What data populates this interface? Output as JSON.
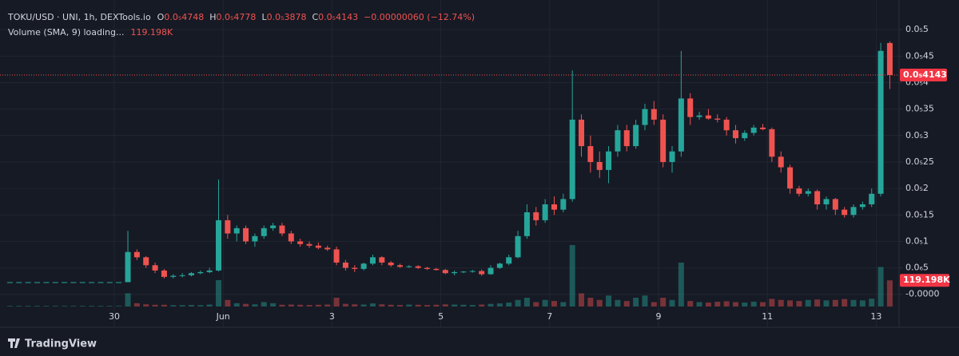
{
  "chart_data": {
    "type": "candlestick",
    "title": "TOKU/USD · UNI, 1h, DEXTools.io",
    "ohlc_labels": [
      "O",
      "H",
      "L",
      "C"
    ],
    "ohlc_values": [
      "0.0₅4748",
      "0.0₅4778",
      "0.0₅3878",
      "0.0₅4143"
    ],
    "change": "−0.00000060 (−12.74%)",
    "volume_title": "Volume (SMA, 9) loading...",
    "current_volume_label": "119.198K",
    "current_price_label": "0.0₅4143",
    "brand": "TradingView",
    "up_color": "#26a69a",
    "down_color": "#ef5350",
    "grid": true,
    "ylim": [
      -2.3e-07,
      5.44e-06
    ],
    "yticks": [
      {
        "value": 5e-06,
        "label": "0.0₅5"
      },
      {
        "value": 4.5e-06,
        "label": "0.0₅45"
      },
      {
        "value": 4e-06,
        "label": "0.0₅4"
      },
      {
        "value": 3.5e-06,
        "label": "0.0₅35"
      },
      {
        "value": 3e-06,
        "label": "0.0₅3"
      },
      {
        "value": 2.5e-06,
        "label": "0.0₅25"
      },
      {
        "value": 2e-06,
        "label": "0.0₅2"
      },
      {
        "value": 1.5e-06,
        "label": "0.0₅15"
      },
      {
        "value": 1e-06,
        "label": "0.0₅1"
      },
      {
        "value": 5e-07,
        "label": "0.0₆5"
      },
      {
        "value": 0,
        "label": "-0.0000"
      }
    ],
    "categories": [
      null,
      null,
      null,
      null,
      null,
      null,
      null,
      null,
      null,
      null,
      null,
      null,
      "30",
      null,
      null,
      null,
      null,
      null,
      null,
      null,
      null,
      null,
      null,
      null,
      "Jun",
      null,
      null,
      null,
      null,
      null,
      null,
      null,
      null,
      null,
      null,
      null,
      "3",
      null,
      null,
      null,
      null,
      null,
      null,
      null,
      null,
      null,
      null,
      null,
      "5",
      null,
      null,
      null,
      null,
      null,
      null,
      null,
      null,
      null,
      null,
      null,
      "7",
      null,
      null,
      null,
      null,
      null,
      null,
      null,
      null,
      null,
      null,
      null,
      "9",
      null,
      null,
      null,
      null,
      null,
      null,
      null,
      null,
      null,
      null,
      null,
      "11",
      null,
      null,
      null,
      null,
      null,
      null,
      null,
      null,
      null,
      null,
      null,
      "13",
      null
    ],
    "ohlc": [
      [
        2.3e-07,
        2.3e-07,
        2.3e-07,
        2.3e-07
      ],
      [
        2.3e-07,
        2.3e-07,
        2.3e-07,
        2.3e-07
      ],
      [
        2.3e-07,
        2.3e-07,
        2.3e-07,
        2.3e-07
      ],
      [
        2.3e-07,
        2.3e-07,
        2.3e-07,
        2.3e-07
      ],
      [
        2.3e-07,
        2.3e-07,
        2.3e-07,
        2.3e-07
      ],
      [
        2.3e-07,
        2.3e-07,
        2.3e-07,
        2.3e-07
      ],
      [
        2.3e-07,
        2.3e-07,
        2.3e-07,
        2.3e-07
      ],
      [
        2.3e-07,
        2.3e-07,
        2.3e-07,
        2.3e-07
      ],
      [
        2.3e-07,
        2.3e-07,
        2.3e-07,
        2.3e-07
      ],
      [
        2.3e-07,
        2.3e-07,
        2.3e-07,
        2.3e-07
      ],
      [
        2.3e-07,
        2.3e-07,
        2.3e-07,
        2.3e-07
      ],
      [
        2.3e-07,
        2.3e-07,
        2.3e-07,
        2.3e-07
      ],
      [
        2.3e-07,
        2.3e-07,
        2.3e-07,
        2.3e-07
      ],
      [
        2.3e-07,
        1.2e-06,
        2.3e-07,
        8e-07
      ],
      [
        8e-07,
        8.5e-07,
        6.5e-07,
        7e-07
      ],
      [
        7e-07,
        7.2e-07,
        5e-07,
        5.5e-07
      ],
      [
        5.5e-07,
        6e-07,
        4e-07,
        4.5e-07
      ],
      [
        4.5e-07,
        4.8e-07,
        3e-07,
        3.3e-07
      ],
      [
        3.3e-07,
        3.8e-07,
        3e-07,
        3.5e-07
      ],
      [
        3.5e-07,
        4e-07,
        3.2e-07,
        3.6e-07
      ],
      [
        3.6e-07,
        4.2e-07,
        3.4e-07,
        4e-07
      ],
      [
        4e-07,
        4.5e-07,
        3.8e-07,
        4.2e-07
      ],
      [
        4.2e-07,
        5e-07,
        4e-07,
        4.5e-07
      ],
      [
        4.5e-07,
        2.17e-06,
        4.3e-07,
        1.4e-06
      ],
      [
        1.4e-06,
        1.5e-06,
        1.05e-06,
        1.15e-06
      ],
      [
        1.15e-06,
        1.3e-06,
        1e-06,
        1.25e-06
      ],
      [
        1.25e-06,
        1.3e-06,
        9.5e-07,
        1e-06
      ],
      [
        1e-06,
        1.15e-06,
        9e-07,
        1.1e-06
      ],
      [
        1.1e-06,
        1.3e-06,
        1.05e-06,
        1.25e-06
      ],
      [
        1.25e-06,
        1.35e-06,
        1.2e-06,
        1.3e-06
      ],
      [
        1.3e-06,
        1.35e-06,
        1.1e-06,
        1.15e-06
      ],
      [
        1.15e-06,
        1.2e-06,
        9.5e-07,
        1e-06
      ],
      [
        1e-06,
        1.05e-06,
        9e-07,
        9.5e-07
      ],
      [
        9.5e-07,
        1e-06,
        8.8e-07,
        9.2e-07
      ],
      [
        9.2e-07,
        9.8e-07,
        8.5e-07,
        8.8e-07
      ],
      [
        8.8e-07,
        9.2e-07,
        8.2e-07,
        8.5e-07
      ],
      [
        8.5e-07,
        9e-07,
        5.5e-07,
        6e-07
      ],
      [
        6e-07,
        6.5e-07,
        4.5e-07,
        5e-07
      ],
      [
        5e-07,
        5.5e-07,
        4.2e-07,
        4.8e-07
      ],
      [
        4.8e-07,
        6e-07,
        4.5e-07,
        5.8e-07
      ],
      [
        5.8e-07,
        7.5e-07,
        5.5e-07,
        7e-07
      ],
      [
        7e-07,
        7.2e-07,
        5.5e-07,
        6e-07
      ],
      [
        6e-07,
        6.3e-07,
        5.2e-07,
        5.5e-07
      ],
      [
        5.5e-07,
        5.8e-07,
        5e-07,
        5.2e-07
      ],
      [
        5.2e-07,
        5.5e-07,
        5e-07,
        5.3e-07
      ],
      [
        5.3e-07,
        5.5e-07,
        4.8e-07,
        5e-07
      ],
      [
        5e-07,
        5.2e-07,
        4.6e-07,
        4.8e-07
      ],
      [
        4.8e-07,
        5e-07,
        4.5e-07,
        4.6e-07
      ],
      [
        4.6e-07,
        4.8e-07,
        3.8e-07,
        4e-07
      ],
      [
        4e-07,
        4.5e-07,
        3.6e-07,
        4.2e-07
      ],
      [
        4.2e-07,
        4.4e-07,
        4e-07,
        4.3e-07
      ],
      [
        4.3e-07,
        4.6e-07,
        4.1e-07,
        4.4e-07
      ],
      [
        4.4e-07,
        4.7e-07,
        3.5e-07,
        3.8e-07
      ],
      [
        3.8e-07,
        5.5e-07,
        3.7e-07,
        5e-07
      ],
      [
        5e-07,
        6e-07,
        4.8e-07,
        5.8e-07
      ],
      [
        5.8e-07,
        7.5e-07,
        5.5e-07,
        7e-07
      ],
      [
        7e-07,
        1.2e-06,
        6.8e-07,
        1.1e-06
      ],
      [
        1.1e-06,
        1.7e-06,
        1.05e-06,
        1.55e-06
      ],
      [
        1.55e-06,
        1.65e-06,
        1.3e-06,
        1.4e-06
      ],
      [
        1.4e-06,
        1.8e-06,
        1.35e-06,
        1.7e-06
      ],
      [
        1.7e-06,
        1.85e-06,
        1.5e-06,
        1.6e-06
      ],
      [
        1.6e-06,
        1.9e-06,
        1.55e-06,
        1.8e-06
      ],
      [
        1.8e-06,
        4.23e-06,
        1.75e-06,
        3.3e-06
      ],
      [
        3.3e-06,
        3.4e-06,
        2.6e-06,
        2.8e-06
      ],
      [
        2.8e-06,
        3e-06,
        2.3e-06,
        2.5e-06
      ],
      [
        2.5e-06,
        2.7e-06,
        2.2e-06,
        2.35e-06
      ],
      [
        2.35e-06,
        2.8e-06,
        2.1e-06,
        2.7e-06
      ],
      [
        2.7e-06,
        3.2e-06,
        2.6e-06,
        3.1e-06
      ],
      [
        3.1e-06,
        3.2e-06,
        2.7e-06,
        2.8e-06
      ],
      [
        2.8e-06,
        3.3e-06,
        2.75e-06,
        3.2e-06
      ],
      [
        3.2e-06,
        3.6e-06,
        3.1e-06,
        3.5e-06
      ],
      [
        3.5e-06,
        3.65e-06,
        3.2e-06,
        3.3e-06
      ],
      [
        3.3e-06,
        3.4e-06,
        2.4e-06,
        2.5e-06
      ],
      [
        2.5e-06,
        2.8e-06,
        2.3e-06,
        2.7e-06
      ],
      [
        2.7e-06,
        4.6e-06,
        2.6e-06,
        3.7e-06
      ],
      [
        3.7e-06,
        3.8e-06,
        3.2e-06,
        3.35e-06
      ],
      [
        3.35e-06,
        3.45e-06,
        3.3e-06,
        3.38e-06
      ],
      [
        3.38e-06,
        3.5e-06,
        3.3e-06,
        3.32e-06
      ],
      [
        3.32e-06,
        3.4e-06,
        3.25e-06,
        3.3e-06
      ],
      [
        3.3e-06,
        3.35e-06,
        3e-06,
        3.1e-06
      ],
      [
        3.1e-06,
        3.2e-06,
        2.85e-06,
        2.95e-06
      ],
      [
        2.95e-06,
        3.1e-06,
        2.9e-06,
        3.05e-06
      ],
      [
        3.05e-06,
        3.2e-06,
        3e-06,
        3.15e-06
      ],
      [
        3.15e-06,
        3.22e-06,
        3.1e-06,
        3.12e-06
      ],
      [
        3.12e-06,
        3.15e-06,
        2.5e-06,
        2.6e-06
      ],
      [
        2.6e-06,
        2.7e-06,
        2.3e-06,
        2.4e-06
      ],
      [
        2.4e-06,
        2.45e-06,
        1.9e-06,
        2e-06
      ],
      [
        2e-06,
        2.05e-06,
        1.85e-06,
        1.9e-06
      ],
      [
        1.9e-06,
        2e-06,
        1.85e-06,
        1.95e-06
      ],
      [
        1.95e-06,
        1.98e-06,
        1.6e-06,
        1.7e-06
      ],
      [
        1.7e-06,
        1.85e-06,
        1.6e-06,
        1.8e-06
      ],
      [
        1.8e-06,
        1.82e-06,
        1.5e-06,
        1.6e-06
      ],
      [
        1.6e-06,
        1.65e-06,
        1.45e-06,
        1.5e-06
      ],
      [
        1.5e-06,
        1.7e-06,
        1.45e-06,
        1.65e-06
      ],
      [
        1.65e-06,
        1.75e-06,
        1.6e-06,
        1.7e-06
      ],
      [
        1.7e-06,
        2e-06,
        1.65e-06,
        1.9e-06
      ],
      [
        1.9e-06,
        4.75e-06,
        1.85e-06,
        4.6e-06
      ],
      [
        4.748e-06,
        4.778e-06,
        3.878e-06,
        4.143e-06
      ]
    ],
    "volume": [
      3000,
      3000,
      3000,
      3000,
      3000,
      3000,
      3000,
      3000,
      3000,
      3000,
      3000,
      3000,
      3000,
      60000,
      15000,
      10000,
      8000,
      8000,
      6000,
      6000,
      7000,
      6000,
      9000,
      120000,
      30000,
      15000,
      12000,
      10000,
      20000,
      15000,
      8000,
      9000,
      8000,
      7000,
      8000,
      9000,
      40000,
      12000,
      10000,
      9000,
      14000,
      10000,
      8000,
      7000,
      9000,
      8000,
      7000,
      8000,
      10000,
      9000,
      8000,
      7000,
      9000,
      12000,
      14000,
      18000,
      30000,
      40000,
      20000,
      30000,
      25000,
      20000,
      280000,
      60000,
      40000,
      30000,
      50000,
      30000,
      25000,
      40000,
      50000,
      20000,
      40000,
      30000,
      200000,
      25000,
      20000,
      18000,
      22000,
      24000,
      20000,
      18000,
      22000,
      20000,
      35000,
      30000,
      28000,
      25000,
      30000,
      32000,
      28000,
      30000,
      34000,
      30000,
      28000,
      36000,
      180000,
      119198
    ]
  }
}
